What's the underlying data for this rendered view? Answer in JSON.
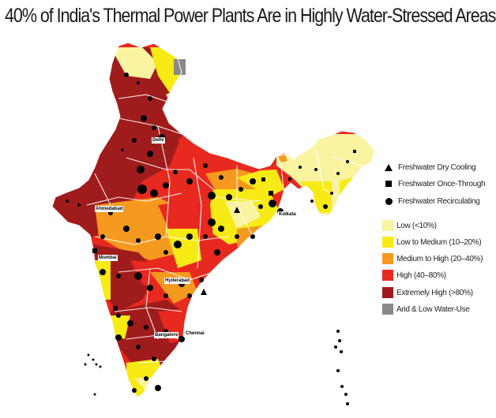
{
  "title": "40% of India's Thermal Power Plants Are in Highly Water-Stressed Areas",
  "legend": {
    "cooling": [
      {
        "symbol": "triangle",
        "label": "Freshwater Dry Cooling"
      },
      {
        "symbol": "square",
        "label": "Freshwater Once-Through"
      },
      {
        "symbol": "circle",
        "label": "Freshwater Recirculating"
      }
    ],
    "stress": [
      {
        "label": "Low (<10%)",
        "color": "#faf3a0"
      },
      {
        "label": "Low to Medium (10–20%)",
        "color": "#f7ea15"
      },
      {
        "label": "Medium to High (20–40%)",
        "color": "#f6991f"
      },
      {
        "label": "High (40–80%)",
        "color": "#e8291f"
      },
      {
        "label": "Extremely High (>80%)",
        "color": "#a01c1c"
      },
      {
        "label": "Arid & Low Water-Use",
        "color": "#8a8a8a"
      }
    ]
  },
  "cities": [
    "Delhi",
    "Ahmedabad",
    "Kolkata",
    "Mumbai",
    "Hyderabad",
    "Bangalore",
    "Chennai"
  ]
}
